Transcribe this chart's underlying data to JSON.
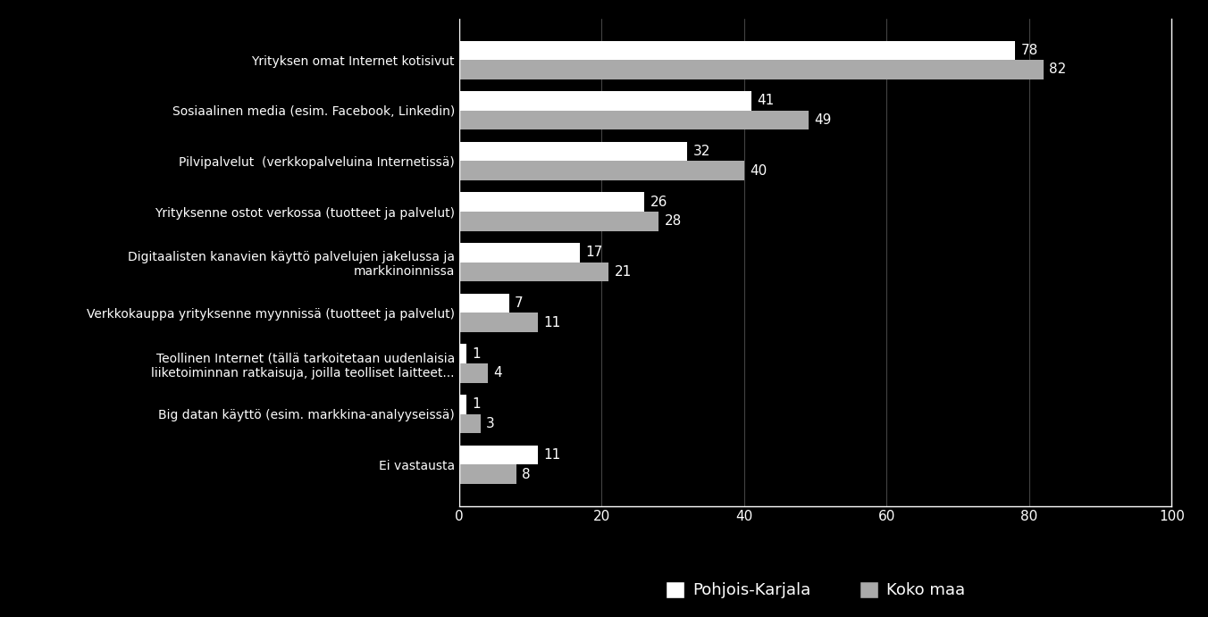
{
  "categories": [
    "Yrityksen omat Internet kotisivut",
    "Sosiaalinen media (esim. Facebook, Linkedin)",
    "Pilvipalvelut  (verkkopalveluina Internetissä)",
    "Yrityksenne ostot verkossa (tuotteet ja palvelut)",
    "Digitaalisten kanavien käyttö palvelujen jakelussa ja\nmarkkinoinnissa",
    "Verkkokauppa yrityksenne myynnissä (tuotteet ja palvelut)",
    "Teollinen Internet (tällä tarkoitetaan uudenlaisia\nliiketoiminnan ratkaisuja, joilla teolliset laitteet...",
    "Big datan käyttö (esim. markkina-analyyseissä)",
    "Ei vastausta"
  ],
  "pohjois_karjala": [
    78,
    41,
    32,
    26,
    17,
    7,
    1,
    1,
    11
  ],
  "koko_maa": [
    82,
    49,
    40,
    28,
    21,
    11,
    4,
    3,
    8
  ],
  "bar_color_pk": "#ffffff",
  "bar_color_km": "#aaaaaa",
  "background_color": "#000000",
  "text_color": "#ffffff",
  "xlim": [
    0,
    100
  ],
  "xticks": [
    0,
    20,
    40,
    60,
    80,
    100
  ],
  "legend_label_pk": "Pohjois-Karjala",
  "legend_label_km": "Koko maa",
  "bar_height": 0.38,
  "fontsize_labels": 10,
  "fontsize_ticks": 11,
  "fontsize_values": 11,
  "fontsize_legend": 13
}
